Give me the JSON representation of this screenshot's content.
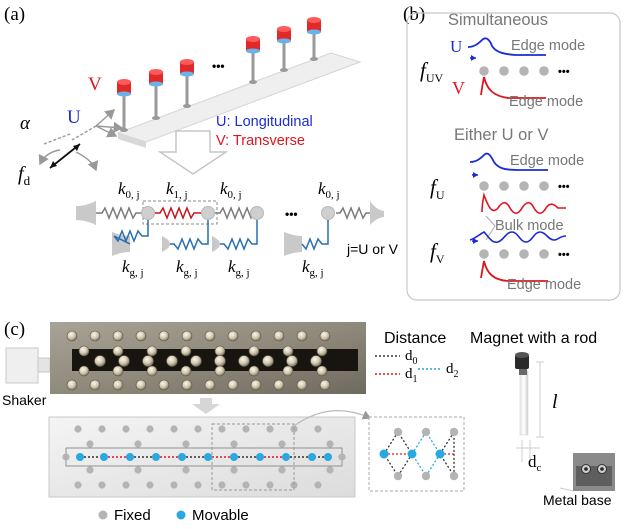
{
  "panel_labels": {
    "a": "(a)",
    "b": "(b)",
    "c": "(c)"
  },
  "panel_a": {
    "alpha": "α",
    "U": "U",
    "V": "V",
    "fd": "f",
    "fd_sub": "d",
    "ellipsis": "•••",
    "legend_U": "U: Longitudinal",
    "legend_V": "V: Transverse",
    "k0j": "k",
    "k0j_sub": "0, j",
    "k1j": "k",
    "k1j_sub": "1, j",
    "kgj": "k",
    "kgj_sub": "g, j",
    "j_note": "j=U or V"
  },
  "panel_b": {
    "simultaneous": "Simultaneous",
    "either": "Either U or V",
    "f": "f",
    "f_uv_sub": "UV",
    "f_u_sub": "U",
    "f_v_sub": "V",
    "U": "U",
    "V": "V",
    "edge_mode": "Edge mode",
    "bulk_mode": "Bulk mode",
    "dots": "•••"
  },
  "panel_c": {
    "shaker": "Shaker",
    "distance": "Distance",
    "d0": "d",
    "d0_sub": "0",
    "d1": "d",
    "d1_sub": "1",
    "d2": "d",
    "d2_sub": "2",
    "magnet_rod": "Magnet with a rod",
    "l": "l",
    "dc": "d",
    "dc_sub": "c",
    "metal_base": "Metal base",
    "fixed": "Fixed",
    "movable": "Movable"
  },
  "colors": {
    "blue": "#1a2bd6",
    "red": "#e0141e",
    "cyan": "#29a9df",
    "gray": "#b4b4b4",
    "spring_gray": "#7a7a7a",
    "spring_red": "#c8141e",
    "spring_blue": "#2a6fb0"
  }
}
